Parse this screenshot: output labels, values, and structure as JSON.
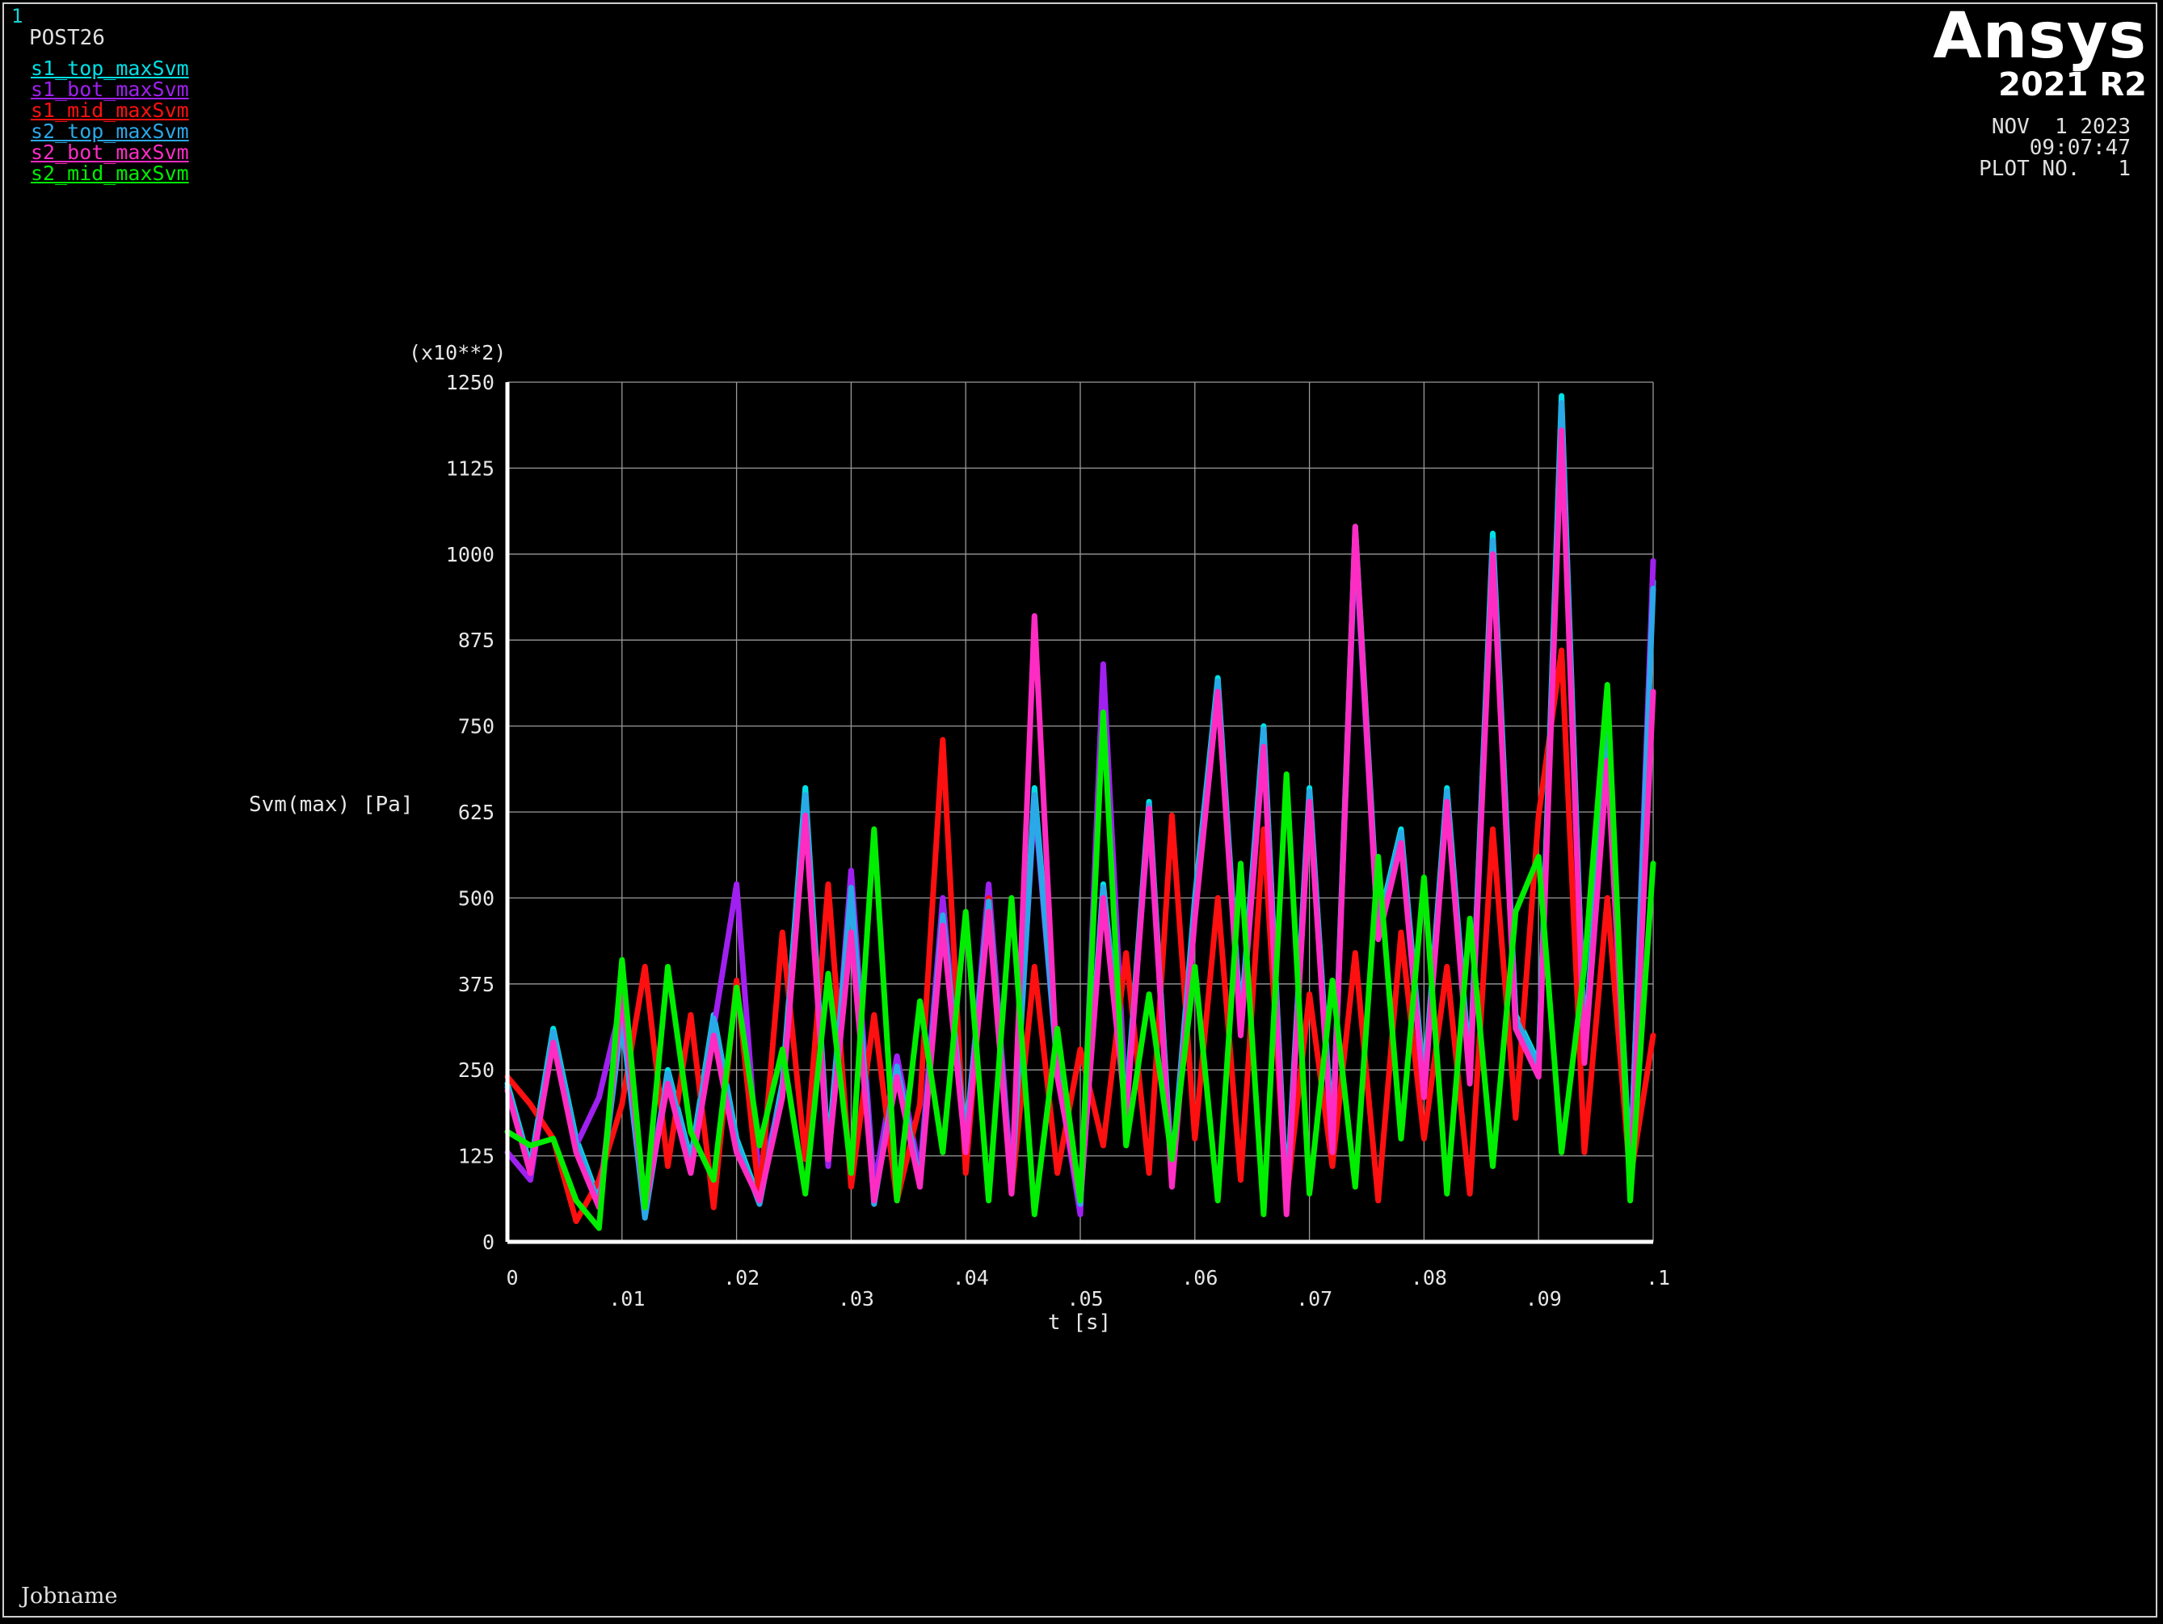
{
  "window": {
    "number": "1",
    "module": "POST26",
    "brand": "Ansys",
    "version": "2021 R2",
    "date": "NOV  1 2023",
    "time": "09:07:47",
    "plot_no": "PLOT NO.   1",
    "jobname": "Jobname"
  },
  "chart_data": {
    "type": "line",
    "title": "",
    "xlabel": "t [s]",
    "ylabel": "Svm(max)  [Pa]",
    "y_multiplier": "(x10**2)",
    "xlim": [
      0,
      0.1
    ],
    "ylim": [
      0,
      1250
    ],
    "grid": true,
    "legend_position": "top-left",
    "y_ticks": [
      0,
      125,
      250,
      375,
      500,
      625,
      750,
      875,
      1000,
      1125,
      1250
    ],
    "y_tick_labels": [
      "0",
      "125",
      "250",
      "375",
      "500",
      "625",
      "750",
      "875",
      "1000",
      "1125",
      "1250"
    ],
    "x_ticks": [
      0,
      0.01,
      0.02,
      0.03,
      0.04,
      0.05,
      0.06,
      0.07,
      0.08,
      0.09,
      0.1
    ],
    "x_tick_labels": [
      "0",
      ".01",
      ".02",
      ".03",
      ".04",
      ".05",
      ".06",
      ".07",
      ".08",
      ".09",
      ".1"
    ],
    "x": [
      0,
      0.002,
      0.004,
      0.006,
      0.008,
      0.01,
      0.012,
      0.014,
      0.016,
      0.018,
      0.02,
      0.022,
      0.024,
      0.026,
      0.028,
      0.03,
      0.032,
      0.034,
      0.036,
      0.038,
      0.04,
      0.042,
      0.044,
      0.046,
      0.048,
      0.05,
      0.052,
      0.054,
      0.056,
      0.058,
      0.06,
      0.062,
      0.064,
      0.066,
      0.068,
      0.07,
      0.072,
      0.074,
      0.076,
      0.078,
      0.08,
      0.082,
      0.084,
      0.086,
      0.088,
      0.09,
      0.092,
      0.094,
      0.096,
      0.098,
      0.1
    ],
    "series": [
      {
        "name": "s1_top_maxSvm",
        "color": "#00e0e6",
        "values": [
          230,
          110,
          310,
          150,
          60,
          330,
          40,
          250,
          120,
          330,
          150,
          60,
          230,
          660,
          130,
          520,
          60,
          260,
          90,
          480,
          150,
          500,
          80,
          660,
          260,
          60,
          520,
          200,
          640,
          100,
          500,
          820,
          320,
          750,
          60,
          660,
          150,
          1040,
          460,
          600,
          230,
          660,
          250,
          1030,
          330,
          260,
          1230,
          280,
          740,
          100,
          960
        ]
      },
      {
        "name": "s1_bot_maxSvm",
        "color": "#a020f0",
        "values": [
          130,
          90,
          300,
          140,
          210,
          350,
          60,
          240,
          110,
          310,
          520,
          80,
          220,
          640,
          110,
          540,
          80,
          270,
          100,
          500,
          140,
          520,
          90,
          640,
          250,
          40,
          840,
          190,
          620,
          90,
          480,
          800,
          310,
          730,
          50,
          640,
          140,
          1020,
          440,
          590,
          220,
          640,
          240,
          1010,
          320,
          250,
          1200,
          270,
          720,
          90,
          990
        ]
      },
      {
        "name": "s1_mid_maxSvm",
        "color": "#ff1010",
        "values": [
          240,
          200,
          150,
          30,
          90,
          200,
          400,
          110,
          330,
          50,
          380,
          60,
          450,
          120,
          520,
          80,
          330,
          60,
          200,
          730,
          100,
          500,
          70,
          400,
          100,
          280,
          140,
          420,
          100,
          620,
          150,
          500,
          90,
          600,
          60,
          360,
          110,
          420,
          60,
          450,
          150,
          400,
          70,
          600,
          180,
          620,
          860,
          130,
          500,
          90,
          300
        ]
      },
      {
        "name": "s2_top_maxSvm",
        "color": "#2aa8e8",
        "values": [
          225,
          105,
          305,
          145,
          55,
          325,
          35,
          245,
          115,
          325,
          145,
          55,
          225,
          650,
          125,
          515,
          55,
          255,
          85,
          475,
          145,
          495,
          75,
          650,
          255,
          55,
          515,
          195,
          635,
          95,
          495,
          815,
          315,
          745,
          55,
          655,
          145,
          1030,
          455,
          595,
          225,
          655,
          245,
          1020,
          325,
          255,
          1220,
          275,
          735,
          95,
          950
        ]
      },
      {
        "name": "s2_bot_maxSvm",
        "color": "#ff2cc4",
        "values": [
          220,
          100,
          290,
          130,
          50,
          360,
          50,
          230,
          100,
          300,
          130,
          60,
          210,
          620,
          120,
          450,
          60,
          240,
          80,
          460,
          130,
          480,
          70,
          910,
          240,
          60,
          500,
          180,
          630,
          80,
          470,
          800,
          300,
          720,
          40,
          640,
          130,
          1040,
          440,
          580,
          210,
          640,
          230,
          1000,
          310,
          240,
          1180,
          260,
          700,
          80,
          800
        ]
      },
      {
        "name": "s2_mid_maxSvm",
        "color": "#00ee00",
        "values": [
          160,
          140,
          150,
          60,
          20,
          410,
          50,
          400,
          160,
          90,
          370,
          140,
          280,
          70,
          390,
          100,
          600,
          60,
          350,
          130,
          480,
          60,
          500,
          40,
          310,
          60,
          770,
          140,
          360,
          120,
          400,
          60,
          550,
          40,
          680,
          70,
          380,
          80,
          560,
          150,
          530,
          70,
          470,
          110,
          480,
          560,
          130,
          400,
          810,
          60,
          550
        ]
      }
    ]
  }
}
